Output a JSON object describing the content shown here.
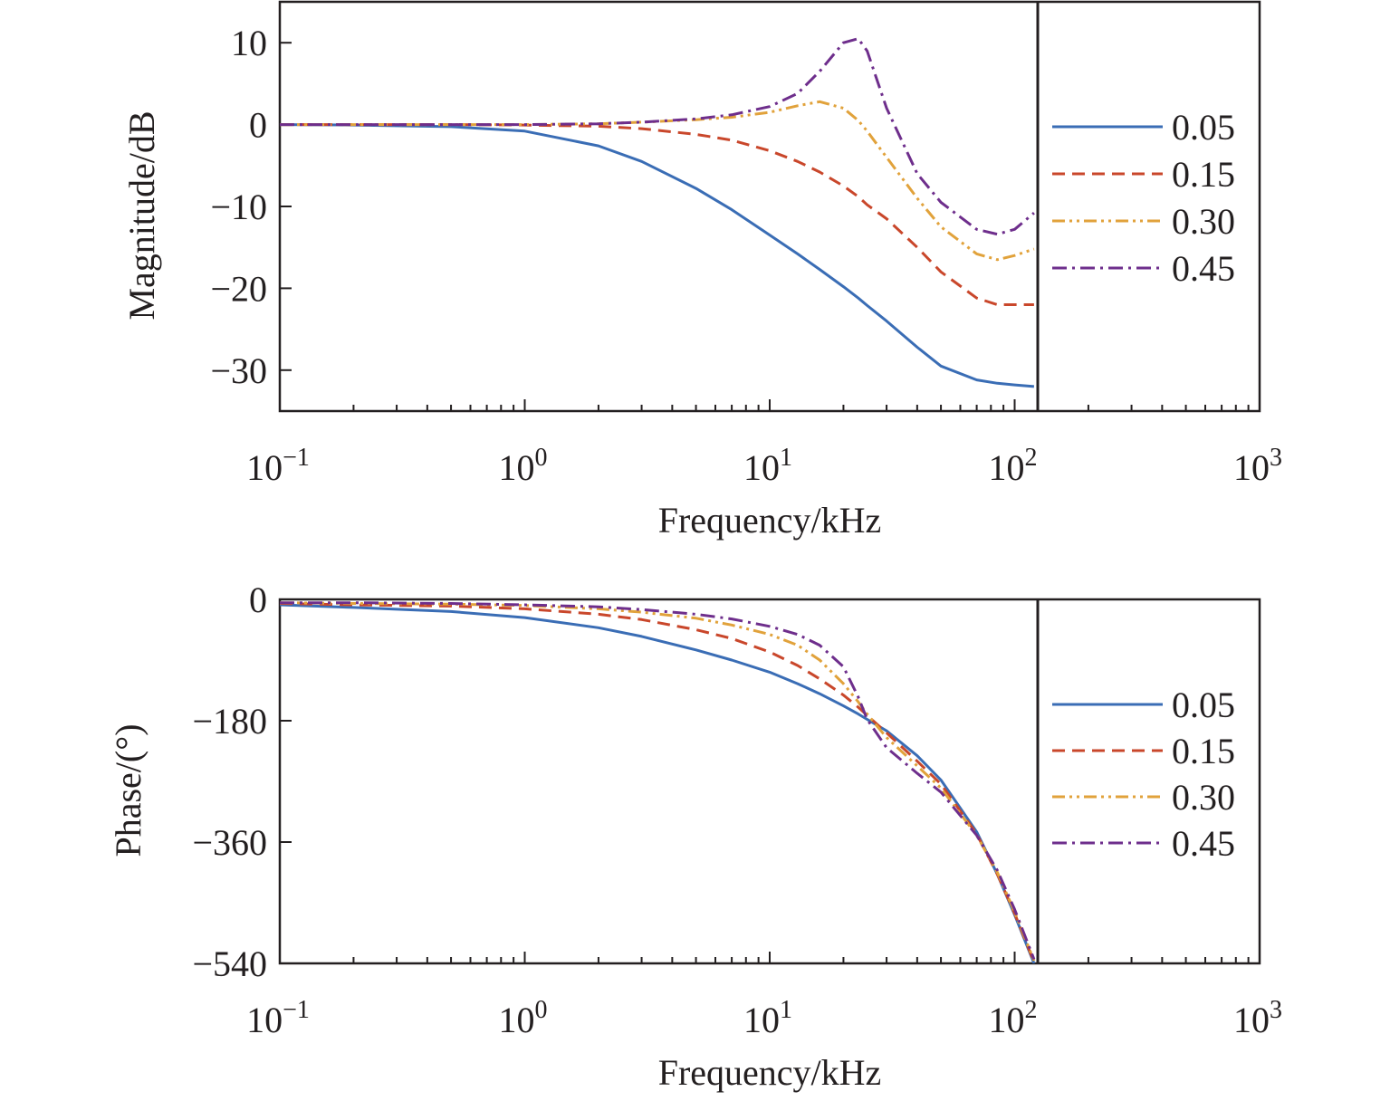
{
  "chart_data": [
    {
      "type": "line",
      "xlabel": "Frequency/kHz",
      "ylabel": "Magnitude/dB",
      "xscale": "log",
      "xlim": [
        0.1,
        1000
      ],
      "ylim": [
        -35,
        15
      ],
      "x_ticks": [
        0.1,
        1,
        10,
        100,
        1000
      ],
      "x_tick_labels": [
        {
          "base": "10",
          "exp": "−1"
        },
        {
          "base": "10",
          "exp": "0"
        },
        {
          "base": "10",
          "exp": "1"
        },
        {
          "base": "10",
          "exp": "2"
        },
        {
          "base": "10",
          "exp": "3"
        }
      ],
      "y_ticks": [
        10,
        0,
        -10,
        -20,
        -30
      ],
      "y_tick_labels": [
        "10",
        "0",
        "−10",
        "−20",
        "−30"
      ],
      "vertical_line_x": 120,
      "legend_position": "right",
      "grid": false,
      "x": [
        0.1,
        0.2,
        0.5,
        1,
        2,
        3,
        5,
        7,
        10,
        13,
        16,
        20,
        23,
        25,
        30,
        40,
        50,
        70,
        85,
        100,
        120
      ],
      "series": [
        {
          "name": "0.05",
          "color": "#3a6db5",
          "dash": "solid",
          "values": [
            0,
            -0.05,
            -0.25,
            -0.8,
            -2.6,
            -4.5,
            -7.8,
            -10.4,
            -13.5,
            -15.8,
            -17.7,
            -19.8,
            -21.2,
            -22.1,
            -24.0,
            -27.2,
            -29.5,
            -31.2,
            -31.6,
            -31.8,
            -32.0
          ]
        },
        {
          "name": "0.15",
          "color": "#c9472b",
          "dash": "dashed",
          "values": [
            0,
            0,
            0,
            -0.05,
            -0.2,
            -0.5,
            -1.2,
            -1.9,
            -3.2,
            -4.5,
            -5.8,
            -7.5,
            -8.8,
            -9.8,
            -11.5,
            -15.0,
            -18.0,
            -21.2,
            -22.0,
            -22.0,
            -22.0
          ]
        },
        {
          "name": "0.30",
          "color": "#e1a23b",
          "dash": "dash-dot-dot",
          "values": [
            0,
            0,
            0,
            0,
            0.1,
            0.3,
            0.6,
            0.9,
            1.5,
            2.3,
            2.8,
            2.0,
            0.5,
            -0.8,
            -4.0,
            -9.0,
            -12.5,
            -15.8,
            -16.5,
            -16.0,
            -15.2
          ]
        },
        {
          "name": "0.45",
          "color": "#6e2e8c",
          "dash": "dash-dot",
          "values": [
            0,
            0,
            0,
            0,
            0.1,
            0.3,
            0.7,
            1.2,
            2.2,
            3.8,
            6.5,
            10.0,
            10.5,
            9.0,
            2.0,
            -6.0,
            -9.5,
            -12.8,
            -13.4,
            -12.8,
            -10.8
          ]
        }
      ]
    },
    {
      "type": "line",
      "xlabel": "Frequency/kHz",
      "ylabel": "Phase/(°)",
      "xscale": "log",
      "xlim": [
        0.1,
        1000
      ],
      "ylim": [
        -540,
        0
      ],
      "x_ticks": [
        0.1,
        1,
        10,
        100,
        1000
      ],
      "x_tick_labels": [
        {
          "base": "10",
          "exp": "−1"
        },
        {
          "base": "10",
          "exp": "0"
        },
        {
          "base": "10",
          "exp": "1"
        },
        {
          "base": "10",
          "exp": "2"
        },
        {
          "base": "10",
          "exp": "3"
        }
      ],
      "y_ticks": [
        0,
        -180,
        -360,
        -540
      ],
      "y_tick_labels": [
        "0",
        "−180",
        "−360",
        "−540"
      ],
      "vertical_line_x": 120,
      "legend_position": "right",
      "grid": false,
      "x": [
        0.1,
        0.2,
        0.5,
        1,
        2,
        3,
        5,
        7,
        10,
        13,
        16,
        20,
        23,
        25,
        30,
        40,
        50,
        70,
        85,
        100,
        120
      ],
      "series": [
        {
          "name": "0.05",
          "color": "#3a6db5",
          "dash": "solid",
          "values": [
            -8,
            -12,
            -18,
            -27,
            -42,
            -55,
            -75,
            -90,
            -108,
            -125,
            -140,
            -158,
            -170,
            -178,
            -195,
            -232,
            -268,
            -345,
            -408,
            -468,
            -540
          ]
        },
        {
          "name": "0.15",
          "color": "#c9472b",
          "dash": "dashed",
          "values": [
            -6,
            -8,
            -10,
            -14,
            -22,
            -30,
            -45,
            -58,
            -78,
            -98,
            -118,
            -142,
            -160,
            -172,
            -198,
            -240,
            -274,
            -348,
            -408,
            -466,
            -538
          ]
        },
        {
          "name": "0.30",
          "color": "#e1a23b",
          "dash": "dash-dot-dot",
          "values": [
            -5,
            -6,
            -7,
            -9,
            -14,
            -19,
            -28,
            -38,
            -52,
            -68,
            -90,
            -125,
            -152,
            -170,
            -205,
            -247,
            -280,
            -350,
            -405,
            -464,
            -536
          ]
        },
        {
          "name": "0.45",
          "color": "#6e2e8c",
          "dash": "dash-dot",
          "values": [
            -5,
            -5,
            -6,
            -8,
            -11,
            -15,
            -22,
            -29,
            -40,
            -52,
            -68,
            -100,
            -145,
            -178,
            -220,
            -258,
            -286,
            -350,
            -402,
            -460,
            -534
          ]
        }
      ]
    }
  ]
}
